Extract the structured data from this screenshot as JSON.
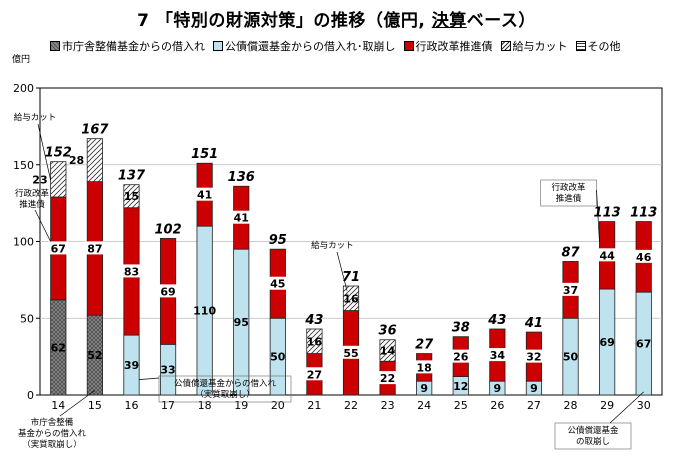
{
  "title_prefix": "7 「特別の財源対策」の推移（億円, ",
  "title_underlined": "決算",
  "title_suffix": "ベース）",
  "y_unit": "億円",
  "colors": {
    "shicho": "#888888",
    "koseki": "#bfe3ee",
    "gyosei": "#cc0000",
    "kyuyo": "#ffffff",
    "other": "#ffffff"
  },
  "legend": [
    {
      "key": "shicho",
      "label": "市庁舎整備基金からの借入れ"
    },
    {
      "key": "koseki",
      "label": "公債償還基金からの借入れ･取崩し"
    },
    {
      "key": "gyosei",
      "label": "行政改革推進債"
    },
    {
      "key": "kyuyo",
      "label": "給与カット"
    },
    {
      "key": "other",
      "label": "その他"
    }
  ],
  "annotations": {
    "kyuyo_14": "給与カット",
    "gyosei_14": "行政改革\n推進債",
    "gyosei_29": "行政改革\n推進債",
    "kyuyo_22": "給与カット",
    "koseki_17": "公債償還基金からの借入れ\n（実質取崩し）",
    "shicho_14": "市庁舎整備\n基金からの借入れ\n（実質取崩し）",
    "koseki_30": "公債償還基金\nの取崩し"
  },
  "chart_data": {
    "type": "bar",
    "stacked": true,
    "categories": [
      "14",
      "15",
      "16",
      "17",
      "18",
      "19",
      "20",
      "21",
      "22",
      "23",
      "24",
      "25",
      "26",
      "27",
      "28",
      "29",
      "30"
    ],
    "ylim": [
      0,
      200
    ],
    "yticks": [
      0,
      50,
      100,
      150,
      200
    ],
    "series": [
      {
        "name": "市庁舎整備基金からの借入れ",
        "key": "shicho",
        "values": [
          62,
          52,
          0,
          0,
          0,
          0,
          0,
          0,
          0,
          0,
          0,
          0,
          0,
          0,
          0,
          0,
          0
        ],
        "labels": [
          "62",
          "52",
          "",
          "",
          "",
          "",
          "",
          "",
          "",
          "",
          "",
          "",
          "",
          "",
          "",
          "",
          ""
        ]
      },
      {
        "name": "公債償還基金からの借入れ･取崩し",
        "key": "koseki",
        "values": [
          0,
          0,
          39,
          33,
          110,
          95,
          50,
          0,
          0,
          0,
          9,
          12,
          9,
          9,
          50,
          69,
          67
        ],
        "labels": [
          "",
          "",
          "39",
          "33",
          "110",
          "95",
          "50",
          "",
          "",
          "",
          "9",
          "12",
          "9",
          "9",
          "50",
          "69",
          "67"
        ]
      },
      {
        "name": "行政改革推進債",
        "key": "gyosei",
        "values": [
          67,
          87,
          83,
          69,
          41,
          41,
          45,
          27,
          55,
          22,
          18,
          26,
          34,
          32,
          37,
          44,
          46
        ],
        "labels": [
          "67",
          "87",
          "83",
          "69",
          "41",
          "41",
          "45",
          "27",
          "55",
          "22",
          "18",
          "26",
          "34",
          "32",
          "37",
          "44",
          "46"
        ]
      },
      {
        "name": "給与カット",
        "key": "kyuyo",
        "values": [
          23,
          28,
          15,
          0,
          0,
          0,
          0,
          16,
          16,
          14,
          0,
          0,
          0,
          0,
          0,
          0,
          0
        ],
        "labels": [
          "23",
          "28",
          "15",
          "",
          "",
          "",
          "",
          "16",
          "16",
          "14",
          "",
          "",
          "",
          "",
          "",
          "",
          ""
        ]
      },
      {
        "name": "その他",
        "key": "other",
        "values": [
          0,
          0,
          0,
          0,
          0,
          0,
          0,
          0,
          0,
          0,
          0,
          0,
          0,
          0,
          0,
          0,
          0
        ],
        "labels": [
          "",
          "",
          "",
          "",
          "",
          "",
          "",
          "",
          "",
          "",
          "",
          "",
          "",
          "",
          "",
          "",
          ""
        ]
      }
    ],
    "totals": [
      "152",
      "167",
      "137",
      "102",
      "151",
      "136",
      "95",
      "43",
      "71",
      "36",
      "27",
      "38",
      "43",
      "41",
      "87",
      "113",
      "113"
    ]
  }
}
